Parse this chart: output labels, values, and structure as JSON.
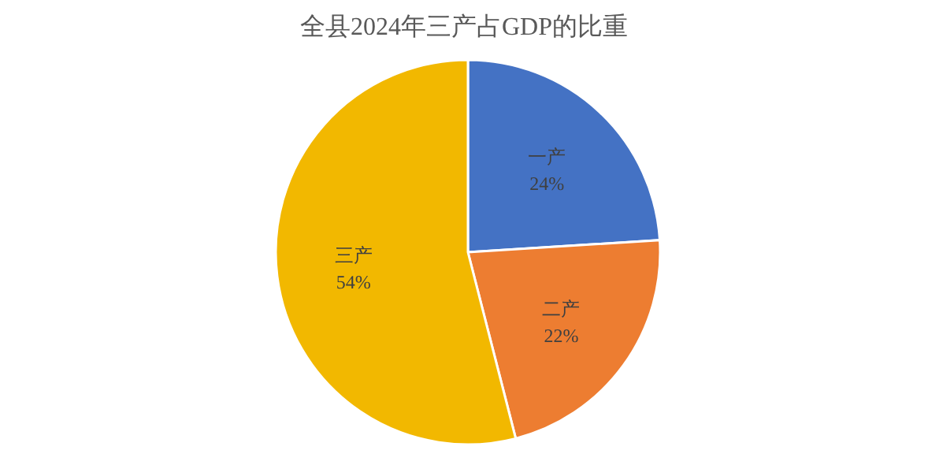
{
  "chart_data": {
    "type": "pie",
    "title": "全县2024年三产占GDP的比重",
    "categories": [
      "一产",
      "二产",
      "三产"
    ],
    "values": [
      24,
      22,
      54
    ],
    "value_labels": [
      "24%",
      "22%",
      "54%"
    ],
    "colors": [
      "#4472c4",
      "#ed7d31",
      "#f2b800"
    ],
    "legend": false
  }
}
